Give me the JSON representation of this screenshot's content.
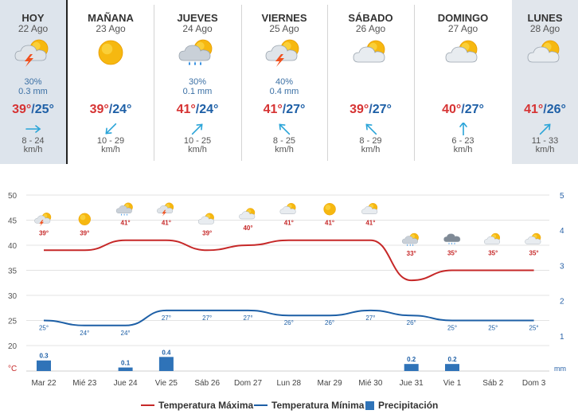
{
  "days": [
    {
      "name": "HOY",
      "date": "22 Ago",
      "icon": "storm-cloud-sun-icon",
      "prob": "30%",
      "mm": "0.3 mm",
      "tmax": "39°",
      "tmin": "25°",
      "wind_dir": "east-icon",
      "wind": "8 - 24",
      "unit": "km/h"
    },
    {
      "name": "MAÑANA",
      "date": "23 Ago",
      "icon": "sun-icon",
      "prob": "",
      "mm": "",
      "tmax": "39°",
      "tmin": "24°",
      "wind_dir": "southwest-icon",
      "wind": "10 - 29",
      "unit": "km/h"
    },
    {
      "name": "JUEVES",
      "date": "24 Ago",
      "icon": "rain-cloud-sun-icon",
      "prob": "30%",
      "mm": "0.1 mm",
      "tmax": "41°",
      "tmin": "24°",
      "wind_dir": "northeast-icon",
      "wind": "10 - 25",
      "unit": "km/h"
    },
    {
      "name": "VIERNES",
      "date": "25 Ago",
      "icon": "storm-cloud-sun-icon",
      "prob": "40%",
      "mm": "0.4 mm",
      "tmax": "41°",
      "tmin": "27°",
      "wind_dir": "northwest-icon",
      "wind": "8 - 25",
      "unit": "km/h"
    },
    {
      "name": "SÁBADO",
      "date": "26 Ago",
      "icon": "cloud-sun-icon",
      "prob": "",
      "mm": "",
      "tmax": "39°",
      "tmin": "27°",
      "wind_dir": "northwest-icon",
      "wind": "8 - 29",
      "unit": "km/h"
    },
    {
      "name": "DOMINGO",
      "date": "27 Ago",
      "icon": "cloud-sun-icon",
      "prob": "",
      "mm": "",
      "tmax": "40°",
      "tmin": "27°",
      "wind_dir": "north-icon",
      "wind": "6 - 23",
      "unit": "km/h"
    },
    {
      "name": "LUNES",
      "date": "28 Ago",
      "icon": "cloud-sun-icon",
      "prob": "",
      "mm": "",
      "tmax": "41°",
      "tmin": "26°",
      "wind_dir": "northeast-icon",
      "wind": "11 - 33",
      "unit": "km/h"
    }
  ],
  "colors": {
    "max": "#d63333",
    "min": "#1d5fa6",
    "precip": "#2f73b8",
    "active_bg": "#dde4ec"
  },
  "chart_data": {
    "type": "line",
    "categories": [
      "Mar 22",
      "Mié 23",
      "Jue 24",
      "Vie 25",
      "Sáb 26",
      "Dom 27",
      "Lun 28",
      "Mar 29",
      "Mié 30",
      "Jue 31",
      "Vie 1",
      "Sáb 2",
      "Dom 3"
    ],
    "series": [
      {
        "name": "Temperatura Máxima",
        "values": [
          39,
          39,
          41,
          41,
          39,
          40,
          41,
          41,
          41,
          33,
          35,
          35,
          35
        ],
        "labels": [
          "39°",
          "39°",
          "41°",
          "41°",
          "39°",
          "40°",
          "41°",
          "41°",
          "41°",
          "33°",
          "35°",
          "35°",
          "35°"
        ]
      },
      {
        "name": "Temperatura Mínima",
        "values": [
          25,
          24,
          24,
          27,
          27,
          27,
          26,
          26,
          27,
          26,
          25,
          25,
          25
        ],
        "labels": [
          "25°",
          "24°",
          "24°",
          "27°",
          "27°",
          "27°",
          "26°",
          "26°",
          "27°",
          "26°",
          "25°",
          "25°",
          "25°"
        ]
      },
      {
        "name": "Precipitación",
        "values": [
          0.3,
          0,
          0.1,
          0.4,
          0,
          0,
          0,
          0,
          0,
          0.2,
          0.2,
          0,
          0
        ],
        "labels": [
          "0.3",
          "",
          "0.1",
          "0.4",
          "",
          "",
          "",
          "",
          "",
          "0.2",
          "0.2",
          "",
          ""
        ]
      }
    ],
    "icons": [
      "storm-cloud-sun-icon",
      "sun-icon",
      "rain-cloud-sun-icon",
      "storm-cloud-sun-icon",
      "cloud-sun-icon",
      "cloud-sun-icon",
      "cloud-sun-icon",
      "sun-icon",
      "cloud-sun-icon",
      "rain-cloud-sun-icon",
      "rain-cloud-icon",
      "cloud-sun-icon",
      "cloud-sun-icon"
    ],
    "y_left_ticks": [
      "50",
      "45",
      "40",
      "35",
      "30",
      "25",
      "20"
    ],
    "y_left_unit": "°C",
    "y_right_ticks": [
      "5",
      "4",
      "3",
      "2",
      "1"
    ],
    "y_right_unit": "mm",
    "ylim_left": [
      15,
      50
    ],
    "ylim_right": [
      0,
      5
    ],
    "grid": true,
    "legend_position": "bottom"
  }
}
